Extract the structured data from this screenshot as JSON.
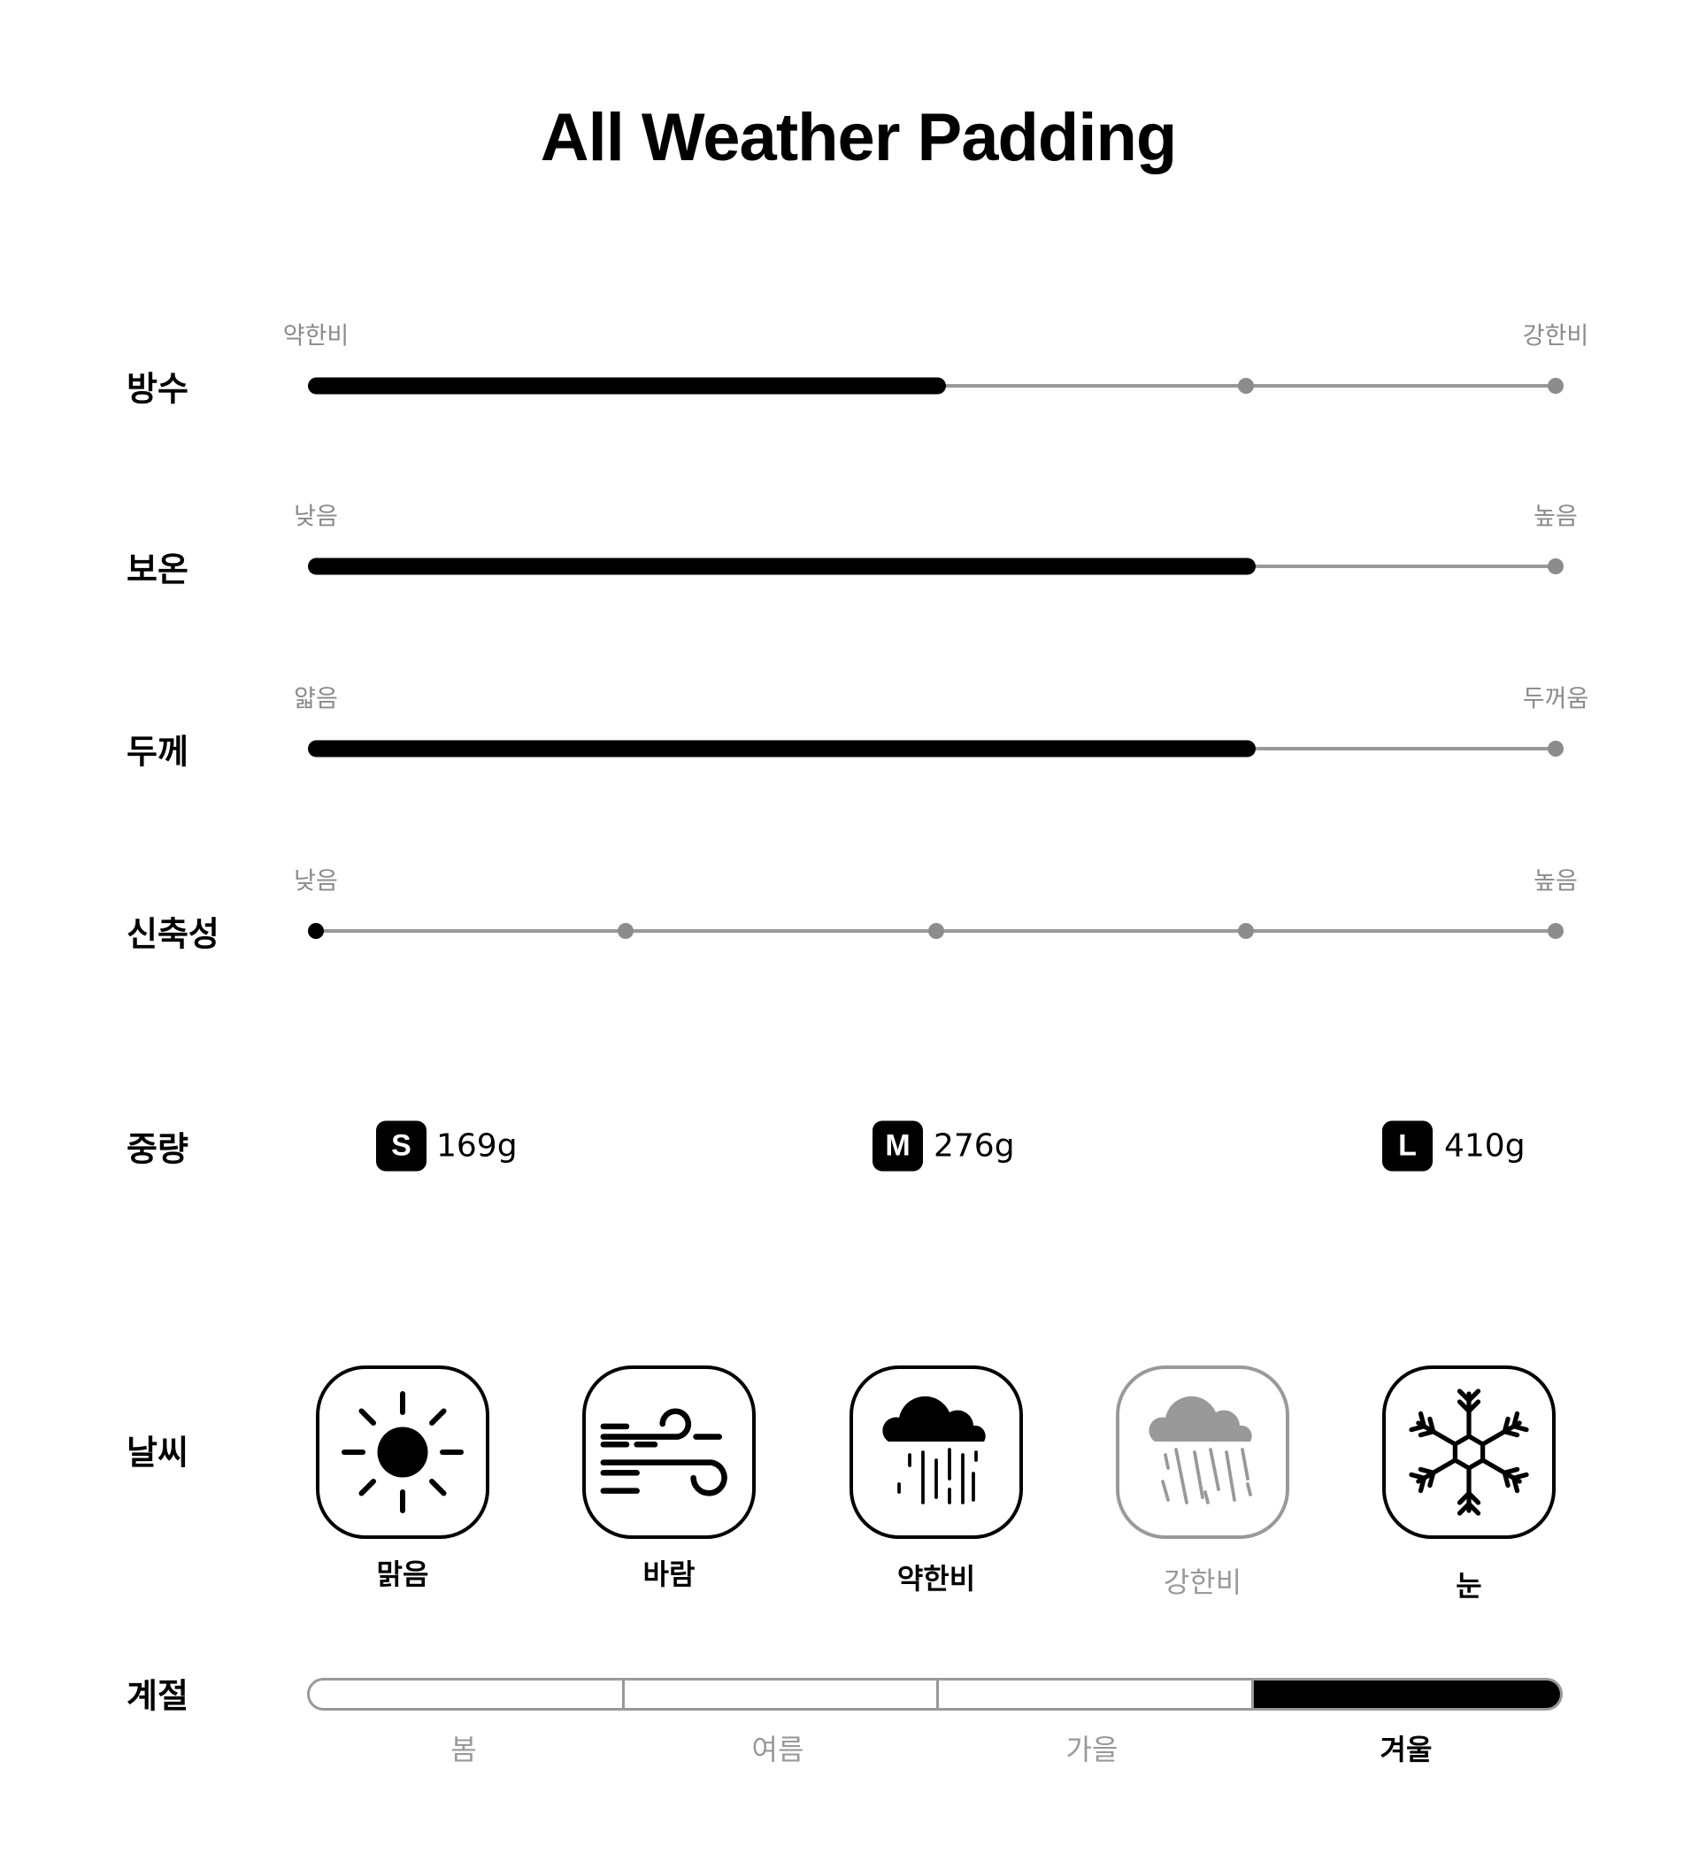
{
  "title": "All Weather Padding",
  "scales": [
    {
      "label": "방수",
      "low": "약한비",
      "high": "강한비",
      "level_index": 2,
      "steps": 5
    },
    {
      "label": "보온",
      "low": "낮음",
      "high": "높음",
      "level_index": 3,
      "steps": 5
    },
    {
      "label": "두께",
      "low": "얇음",
      "high": "두꺼움",
      "level_index": 3,
      "steps": 5
    },
    {
      "label": "신축성",
      "low": "낮음",
      "high": "높음",
      "level_index": 0,
      "steps": 5
    }
  ],
  "weight": {
    "label": "중량",
    "sizes": [
      {
        "size": "S",
        "value": "169g"
      },
      {
        "size": "M",
        "value": "276g"
      },
      {
        "size": "L",
        "value": "410g"
      }
    ]
  },
  "weather": {
    "label": "날씨",
    "items": [
      {
        "label": "맑음",
        "icon": "sun-icon",
        "active": true
      },
      {
        "label": "바람",
        "icon": "wind-icon",
        "active": true
      },
      {
        "label": "약한비",
        "icon": "light-rain-icon",
        "active": true
      },
      {
        "label": "강한비",
        "icon": "heavy-rain-icon",
        "active": false
      },
      {
        "label": "눈",
        "icon": "snowflake-icon",
        "active": true
      }
    ]
  },
  "season": {
    "label": "계절",
    "items": [
      {
        "label": "봄",
        "active": false
      },
      {
        "label": "여름",
        "active": false
      },
      {
        "label": "가을",
        "active": false
      },
      {
        "label": "겨울",
        "active": true
      }
    ]
  },
  "colors": {
    "active": "#000000",
    "inactive": "#999999",
    "dot": "#8c8c8c"
  }
}
